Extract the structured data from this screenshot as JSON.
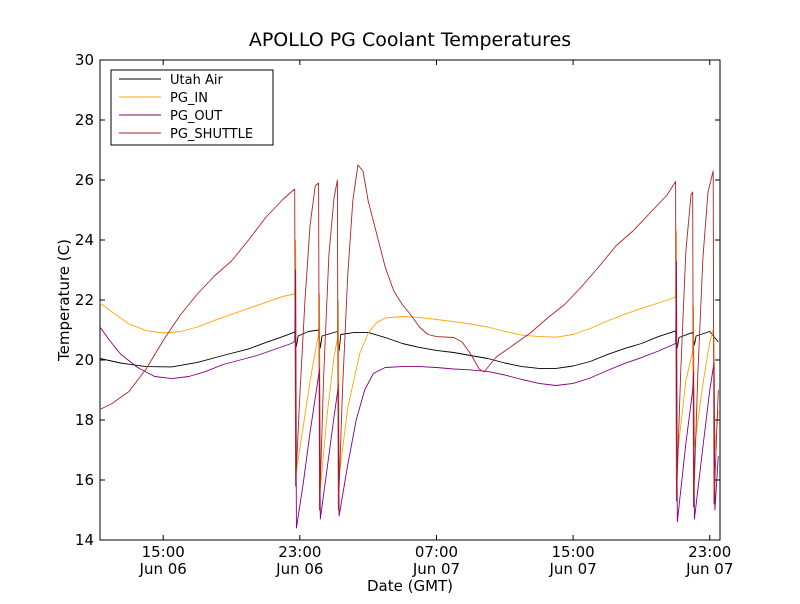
{
  "chart_data": {
    "type": "line",
    "title": "APOLLO PG Coolant Temperatures",
    "xlabel": "Date (GMT)",
    "ylabel": "Temperature (C)",
    "x_unit": "hours since Jun 06 00:00 GMT",
    "xlim": [
      11.3,
      47.6
    ],
    "ylim": [
      14,
      30
    ],
    "yticks": [
      14,
      16,
      18,
      20,
      22,
      24,
      26,
      28,
      30
    ],
    "xticks": [
      {
        "x": 15,
        "line1": "15:00",
        "line2": "Jun 06"
      },
      {
        "x": 23,
        "line1": "23:00",
        "line2": "Jun 06"
      },
      {
        "x": 31,
        "line1": "07:00",
        "line2": "Jun 07"
      },
      {
        "x": 39,
        "line1": "15:00",
        "line2": "Jun 07"
      },
      {
        "x": 47,
        "line1": "23:00",
        "line2": "Jun 07"
      }
    ],
    "legend": {
      "position": "top-left"
    },
    "series": [
      {
        "name": "Utah Air",
        "color": "#000000",
        "points": [
          [
            11.3,
            20.05
          ],
          [
            12.5,
            19.9
          ],
          [
            14,
            19.78
          ],
          [
            15.5,
            19.77
          ],
          [
            17,
            19.92
          ],
          [
            18.5,
            20.15
          ],
          [
            20,
            20.37
          ],
          [
            21,
            20.58
          ],
          [
            22,
            20.78
          ],
          [
            22.7,
            20.93
          ],
          [
            22.8,
            20.45
          ],
          [
            22.9,
            20.8
          ],
          [
            23.5,
            20.95
          ],
          [
            24.1,
            21.0
          ],
          [
            24.2,
            20.4
          ],
          [
            24.3,
            20.8
          ],
          [
            25.2,
            20.95
          ],
          [
            25.3,
            20.3
          ],
          [
            25.4,
            20.85
          ],
          [
            26.2,
            20.92
          ],
          [
            27,
            20.92
          ],
          [
            28,
            20.75
          ],
          [
            29,
            20.55
          ],
          [
            30,
            20.42
          ],
          [
            31,
            20.32
          ],
          [
            32,
            20.25
          ],
          [
            33,
            20.15
          ],
          [
            34,
            20.05
          ],
          [
            35,
            19.9
          ],
          [
            36,
            19.78
          ],
          [
            37,
            19.72
          ],
          [
            38,
            19.72
          ],
          [
            39,
            19.8
          ],
          [
            40,
            19.95
          ],
          [
            41,
            20.18
          ],
          [
            42,
            20.38
          ],
          [
            43,
            20.55
          ],
          [
            44,
            20.78
          ],
          [
            45,
            20.97
          ],
          [
            45.1,
            20.4
          ],
          [
            45.2,
            20.75
          ],
          [
            46,
            20.92
          ],
          [
            46.1,
            20.5
          ],
          [
            46.2,
            20.8
          ],
          [
            47,
            20.95
          ],
          [
            47.5,
            20.6
          ]
        ]
      },
      {
        "name": "PG_IN",
        "color": "#ffa500",
        "points": [
          [
            11.3,
            21.9
          ],
          [
            12,
            21.6
          ],
          [
            13,
            21.2
          ],
          [
            14,
            20.98
          ],
          [
            15,
            20.9
          ],
          [
            16,
            20.95
          ],
          [
            17,
            21.1
          ],
          [
            18,
            21.32
          ],
          [
            19,
            21.52
          ],
          [
            20,
            21.72
          ],
          [
            21,
            21.92
          ],
          [
            22,
            22.12
          ],
          [
            22.7,
            22.2
          ],
          [
            22.75,
            24.0
          ],
          [
            22.8,
            16.3
          ],
          [
            23.2,
            17.8
          ],
          [
            23.6,
            19.3
          ],
          [
            24.0,
            20.6
          ],
          [
            24.1,
            20.8
          ],
          [
            24.15,
            22.2
          ],
          [
            24.2,
            15.7
          ],
          [
            24.6,
            18.2
          ],
          [
            25.0,
            20.1
          ],
          [
            25.2,
            20.7
          ],
          [
            25.25,
            22.0
          ],
          [
            25.3,
            16.1
          ],
          [
            25.8,
            18.4
          ],
          [
            26.5,
            20.2
          ],
          [
            27,
            20.9
          ],
          [
            27.5,
            21.25
          ],
          [
            28,
            21.4
          ],
          [
            29,
            21.45
          ],
          [
            30,
            21.42
          ],
          [
            31,
            21.35
          ],
          [
            32,
            21.28
          ],
          [
            33,
            21.2
          ],
          [
            34,
            21.1
          ],
          [
            35,
            20.95
          ],
          [
            36,
            20.83
          ],
          [
            37,
            20.78
          ],
          [
            38,
            20.76
          ],
          [
            39,
            20.85
          ],
          [
            40,
            21.05
          ],
          [
            41,
            21.3
          ],
          [
            42,
            21.52
          ],
          [
            43,
            21.72
          ],
          [
            44,
            21.9
          ],
          [
            45,
            22.1
          ],
          [
            45.05,
            24.3
          ],
          [
            45.1,
            16.8
          ],
          [
            45.6,
            19.3
          ],
          [
            46.0,
            20.3
          ],
          [
            46.05,
            21.8
          ],
          [
            46.1,
            17.1
          ],
          [
            46.6,
            19.2
          ],
          [
            47.0,
            20.6
          ],
          [
            47.2,
            21.0
          ],
          [
            47.25,
            20.7
          ],
          [
            47.3,
            17.0
          ],
          [
            47.5,
            18.3
          ]
        ]
      },
      {
        "name": "PG_OUT",
        "color": "#800080",
        "points": [
          [
            11.3,
            21.1
          ],
          [
            11.8,
            20.7
          ],
          [
            12.5,
            20.2
          ],
          [
            13.5,
            19.75
          ],
          [
            14.5,
            19.45
          ],
          [
            15.5,
            19.38
          ],
          [
            16.5,
            19.45
          ],
          [
            17.5,
            19.62
          ],
          [
            18.5,
            19.85
          ],
          [
            19.5,
            20.0
          ],
          [
            20.5,
            20.15
          ],
          [
            21.5,
            20.35
          ],
          [
            22.5,
            20.55
          ],
          [
            22.7,
            20.62
          ],
          [
            22.75,
            23.0
          ],
          [
            22.8,
            14.4
          ],
          [
            23.2,
            15.9
          ],
          [
            23.6,
            17.6
          ],
          [
            24.0,
            19.1
          ],
          [
            24.1,
            19.5
          ],
          [
            24.15,
            19.7
          ],
          [
            24.2,
            14.7
          ],
          [
            24.6,
            16.4
          ],
          [
            25.0,
            18.1
          ],
          [
            25.2,
            18.9
          ],
          [
            25.25,
            19.2
          ],
          [
            25.3,
            14.8
          ],
          [
            25.8,
            16.5
          ],
          [
            26.3,
            18.0
          ],
          [
            26.8,
            19.0
          ],
          [
            27.3,
            19.55
          ],
          [
            28,
            19.75
          ],
          [
            29,
            19.78
          ],
          [
            30,
            19.78
          ],
          [
            31,
            19.75
          ],
          [
            32,
            19.7
          ],
          [
            33,
            19.67
          ],
          [
            34,
            19.62
          ],
          [
            35,
            19.5
          ],
          [
            36,
            19.35
          ],
          [
            37,
            19.22
          ],
          [
            38,
            19.15
          ],
          [
            39,
            19.22
          ],
          [
            40,
            19.4
          ],
          [
            41,
            19.65
          ],
          [
            42,
            19.88
          ],
          [
            43,
            20.08
          ],
          [
            44,
            20.3
          ],
          [
            45,
            20.55
          ],
          [
            45.05,
            23.3
          ],
          [
            45.1,
            14.6
          ],
          [
            45.6,
            17.2
          ],
          [
            46.0,
            19.0
          ],
          [
            46.05,
            19.6
          ],
          [
            46.1,
            14.7
          ],
          [
            46.6,
            17.1
          ],
          [
            47.0,
            19.0
          ],
          [
            47.25,
            19.9
          ],
          [
            47.3,
            15.0
          ],
          [
            47.5,
            16.8
          ]
        ]
      },
      {
        "name": "PG_SHUTTLE",
        "color": "#b22222",
        "points": [
          [
            11.3,
            18.35
          ],
          [
            12,
            18.55
          ],
          [
            13,
            18.95
          ],
          [
            14,
            19.7
          ],
          [
            15,
            20.65
          ],
          [
            16,
            21.5
          ],
          [
            17,
            22.2
          ],
          [
            18,
            22.8
          ],
          [
            19,
            23.3
          ],
          [
            20,
            24.0
          ],
          [
            21,
            24.75
          ],
          [
            22,
            25.35
          ],
          [
            22.7,
            25.7
          ],
          [
            22.75,
            15.8
          ],
          [
            23.0,
            18.8
          ],
          [
            23.3,
            22.0
          ],
          [
            23.6,
            24.5
          ],
          [
            23.9,
            25.8
          ],
          [
            24.1,
            25.9
          ],
          [
            24.15,
            15.0
          ],
          [
            24.4,
            19.5
          ],
          [
            24.7,
            23.5
          ],
          [
            25.0,
            25.4
          ],
          [
            25.2,
            26.0
          ],
          [
            25.25,
            15.0
          ],
          [
            25.5,
            19.0
          ],
          [
            25.8,
            22.8
          ],
          [
            26.1,
            25.3
          ],
          [
            26.4,
            26.5
          ],
          [
            26.7,
            26.3
          ],
          [
            27,
            25.3
          ],
          [
            27.5,
            24.2
          ],
          [
            28,
            23.1
          ],
          [
            28.5,
            22.3
          ],
          [
            29,
            21.85
          ],
          [
            29.5,
            21.5
          ],
          [
            30,
            21.1
          ],
          [
            30.5,
            20.85
          ],
          [
            31,
            20.78
          ],
          [
            32,
            20.75
          ],
          [
            32.5,
            20.6
          ],
          [
            33,
            20.2
          ],
          [
            33.5,
            19.7
          ],
          [
            33.8,
            19.6
          ],
          [
            34,
            19.75
          ],
          [
            34.5,
            20.1
          ],
          [
            35.5,
            20.5
          ],
          [
            36.5,
            20.9
          ],
          [
            37.5,
            21.4
          ],
          [
            38.5,
            21.85
          ],
          [
            39.5,
            22.45
          ],
          [
            40.5,
            23.1
          ],
          [
            41.5,
            23.8
          ],
          [
            42.5,
            24.3
          ],
          [
            43.5,
            24.9
          ],
          [
            44.5,
            25.5
          ],
          [
            45,
            25.95
          ],
          [
            45.05,
            15.3
          ],
          [
            45.3,
            19.6
          ],
          [
            45.6,
            23.6
          ],
          [
            45.9,
            25.5
          ],
          [
            46.0,
            25.6
          ],
          [
            46.05,
            15.1
          ],
          [
            46.3,
            19.5
          ],
          [
            46.6,
            23.4
          ],
          [
            46.9,
            25.6
          ],
          [
            47.2,
            26.3
          ],
          [
            47.25,
            15.2
          ],
          [
            47.5,
            19.0
          ]
        ]
      }
    ]
  }
}
